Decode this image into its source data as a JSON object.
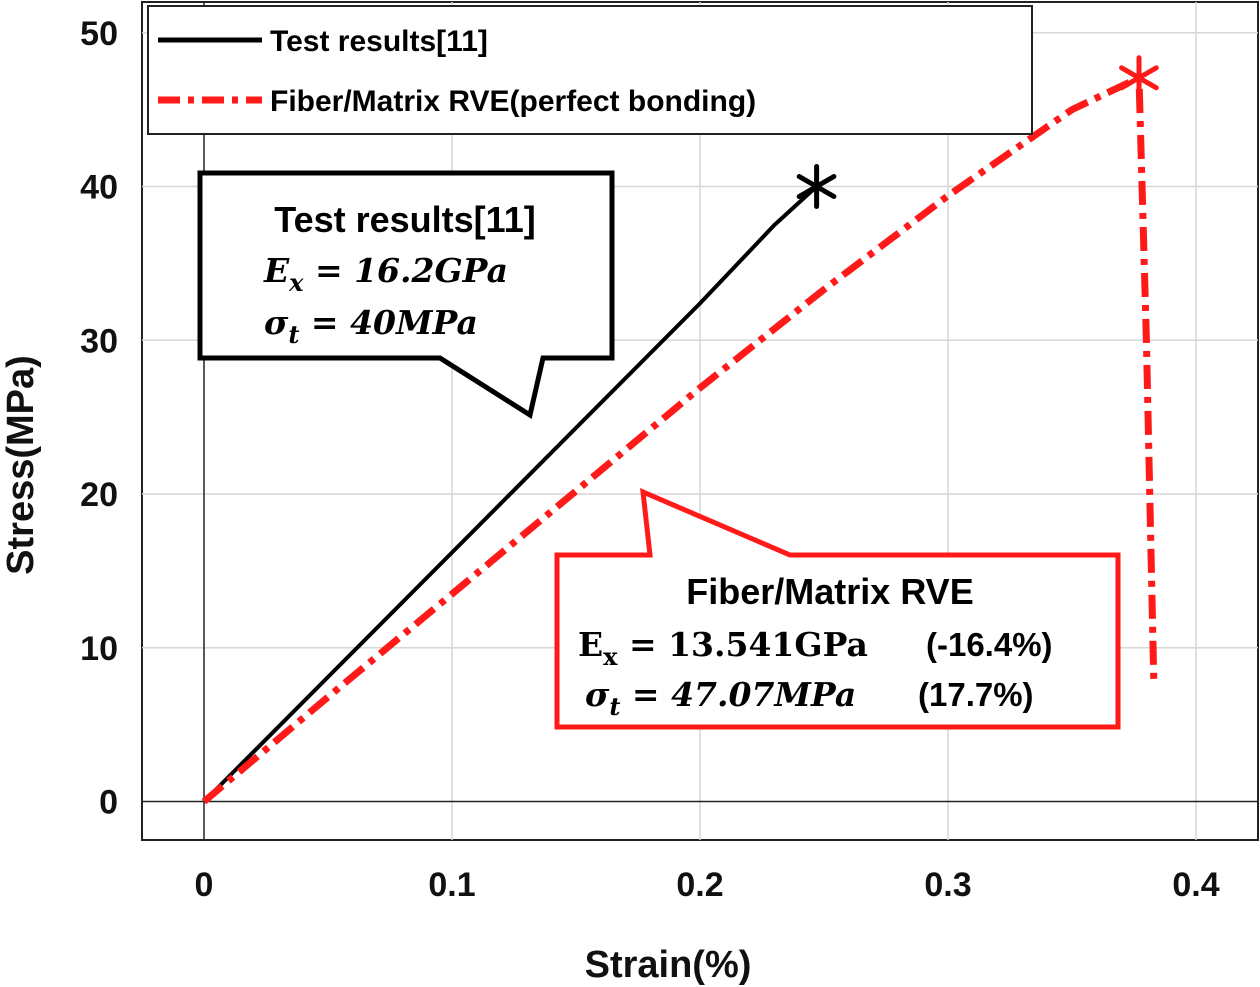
{
  "chart_data": {
    "type": "line",
    "title": "",
    "xlabel": "Strain(%)",
    "ylabel": "Stress(MPa)",
    "xlim": [
      -0.025,
      0.425
    ],
    "ylim": [
      -2.5,
      52
    ],
    "xticks": [
      0,
      0.1,
      0.2,
      0.3,
      0.4
    ],
    "xtick_labels": [
      "0",
      "0.1",
      "0.2",
      "0.3",
      "0.4"
    ],
    "yticks": [
      0,
      10,
      20,
      30,
      40,
      50
    ],
    "ytick_labels": [
      "0",
      "10",
      "20",
      "30",
      "40",
      "50"
    ],
    "grid": true,
    "legend_position": "top-left",
    "series": [
      {
        "name": "Test results[11]",
        "color": "#000000",
        "style": "solid",
        "x": [
          0,
          0.05,
          0.1,
          0.15,
          0.2,
          0.23,
          0.247
        ],
        "y": [
          0,
          8.1,
          16.2,
          24.3,
          32.4,
          37.5,
          40
        ]
      },
      {
        "name": "Fiber/Matrix RVE(perfect bonding)",
        "color": "#ff1a1a",
        "style": "dash-dot",
        "x": [
          0,
          0.05,
          0.1,
          0.15,
          0.2,
          0.25,
          0.3,
          0.35,
          0.377,
          0.38,
          0.383
        ],
        "y": [
          0,
          6.8,
          13.5,
          20.2,
          26.9,
          33.3,
          39.4,
          45.0,
          47.07,
          30,
          7.8
        ]
      }
    ],
    "end_markers": [
      {
        "series": "Test results[11]",
        "x": 0.247,
        "y": 40,
        "symbol": "asterisk",
        "color": "#000000"
      },
      {
        "series": "Fiber/Matrix RVE(perfect bonding)",
        "x": 0.377,
        "y": 47.07,
        "symbol": "asterisk",
        "color": "#ff1a1a"
      }
    ],
    "annotations": [
      {
        "id": "test",
        "border_color": "#000000",
        "title": "Test results[11]",
        "line1_sym": "E",
        "line1_sub": "x",
        "line1_rest": " = 16.2GPa",
        "line2_sym": "σ",
        "line2_sub": "t",
        "line2_rest": " = 40MPa"
      },
      {
        "id": "rve",
        "border_color": "#ff1a1a",
        "title": "Fiber/Matrix RVE",
        "line1_sym": "E",
        "line1_sub": "x",
        "line1_rest": " = 13.541GPa",
        "line1_pct": "(-16.4%)",
        "line2_sym": "σ",
        "line2_sub": "t",
        "line2_rest": " = 47.07MPa",
        "line2_pct": "(17.7%)"
      }
    ]
  }
}
